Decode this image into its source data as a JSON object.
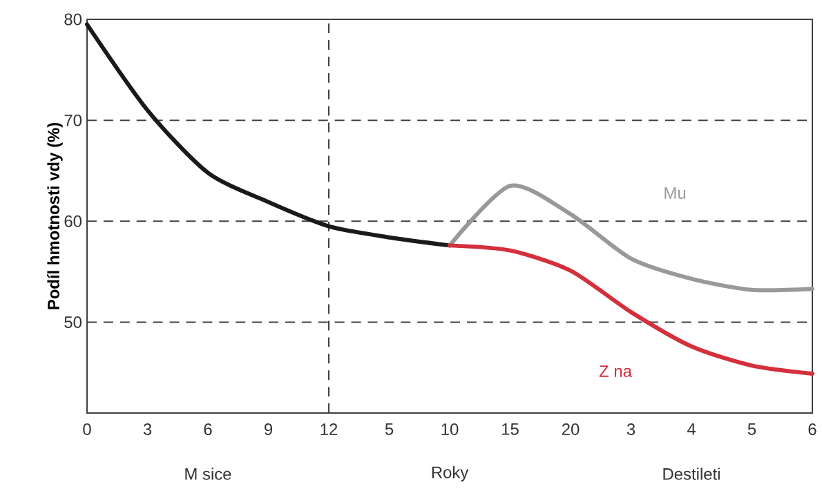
{
  "chart_data": {
    "type": "line",
    "ylabel": "Podíl hmotnosti vdy (%)",
    "categories": [
      "0",
      "3",
      "6",
      "9",
      "12",
      "5",
      "10",
      "15",
      "20",
      "3",
      "4",
      "5",
      "6"
    ],
    "ylim": [
      41,
      80
    ],
    "yticks": [
      50,
      60,
      70,
      80
    ],
    "grid": "y",
    "line_style": "solid",
    "ref_lines": [
      {
        "axis": "x",
        "value": "12",
        "line_style": "dashed"
      }
    ],
    "series": [
      {
        "color": "#1a1a1a",
        "values": [
          79.5,
          71.0,
          64.8,
          61.9,
          59.5,
          58.4,
          57.6,
          null,
          null,
          null,
          null,
          null,
          null
        ]
      },
      {
        "name": "Mu",
        "color": "#999999",
        "values": [
          null,
          null,
          null,
          null,
          null,
          null,
          57.6,
          63.5,
          60.7,
          56.3,
          54.3,
          53.2,
          53.3
        ]
      },
      {
        "name": "Z na",
        "color": "#d4303c",
        "values": [
          null,
          null,
          null,
          null,
          null,
          null,
          57.6,
          57.1,
          55.1,
          51.0,
          47.6,
          45.7,
          44.9
        ]
      }
    ],
    "annotations": [
      "M sice",
      "Roky",
      "Destileti"
    ]
  }
}
